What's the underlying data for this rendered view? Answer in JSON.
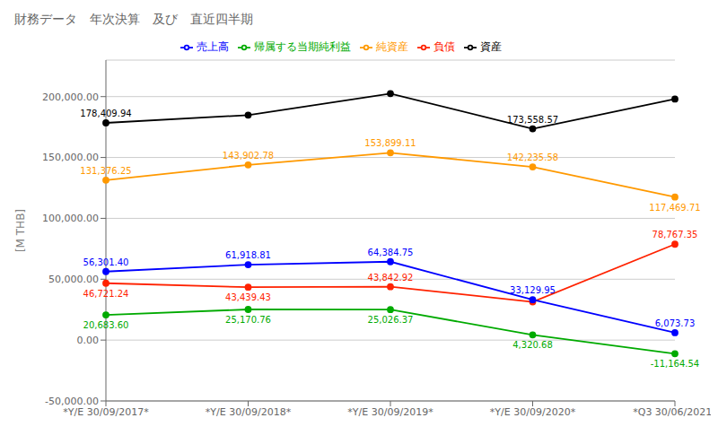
{
  "chart_data": {
    "type": "line",
    "title": "財務データ　年次決算　及び　直近四半期",
    "categories": [
      "*Y/E 30/09/2017*",
      "*Y/E 30/09/2018*",
      "*Y/E 30/09/2019*",
      "*Y/E 30/09/2020*",
      "*Q3 30/06/2021*"
    ],
    "ylabel": "[M THB]",
    "series": [
      {
        "name": "資産",
        "color": "#000000",
        "marker": "circle",
        "values": [
          178409.94,
          184800.0,
          202500.0,
          173558.57,
          198000.0
        ],
        "value_labels": [
          "178,409.94",
          null,
          null,
          "173,558.57",
          null
        ]
      },
      {
        "name": "負債",
        "color": "#ff2200",
        "marker": "circle",
        "values": [
          46721.24,
          43439.43,
          43842.92,
          31358.0,
          78767.35
        ],
        "value_labels": [
          "46,721.24",
          "43,439.43",
          "43,842.92",
          null,
          "78,767.35"
        ]
      },
      {
        "name": "純資産",
        "color": "#ff9900",
        "marker": "circle",
        "values": [
          131376.25,
          143902.78,
          153899.11,
          142235.58,
          117469.71
        ],
        "value_labels": [
          "131,376.25",
          "143,902.78",
          "153,899.11",
          "142,235.58",
          "117,469.71"
        ]
      },
      {
        "name": "売上高",
        "color": "#0000ff",
        "marker": "circle",
        "values": [
          56301.4,
          61918.81,
          64384.75,
          33129.95,
          6073.73
        ],
        "value_labels": [
          "56,301.40",
          "61,918.81",
          "64,384.75",
          "33,129.95",
          "6,073.73"
        ]
      },
      {
        "name": "帰属する当期純利益",
        "color": "#00aa00",
        "marker": "circle",
        "values": [
          20683.6,
          25170.76,
          25026.37,
          4320.68,
          -11164.54
        ],
        "value_labels": [
          "20,683.60",
          "25,170.76",
          "25,026.37",
          "4,320.68",
          "-11,164.54"
        ]
      }
    ],
    "ylim": [
      -50000,
      230000
    ],
    "yticks": [
      {
        "value": -50000,
        "label": "-50,000.00"
      },
      {
        "value": 0,
        "label": "0.00"
      },
      {
        "value": 50000,
        "label": "50,000.00"
      },
      {
        "value": 100000,
        "label": "100,000.00"
      },
      {
        "value": 150000,
        "label": "150,000.00"
      },
      {
        "value": 200000,
        "label": "200,000.00"
      }
    ],
    "grid": true,
    "legend": "top",
    "data_labels": true
  }
}
